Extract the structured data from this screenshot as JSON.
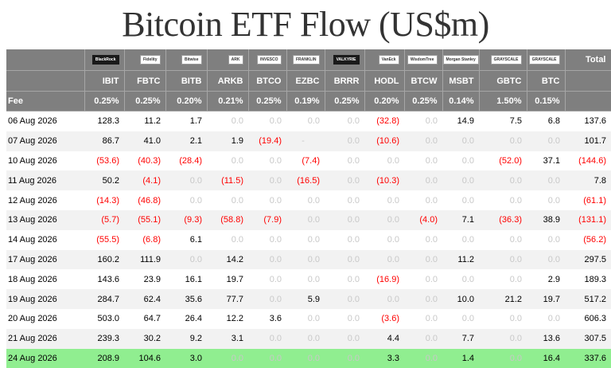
{
  "title": "Bitcoin ETF Flow (US$m)",
  "header": {
    "logos": [
      "BlackRock",
      "Fidelity",
      "Bitwise",
      "ARK",
      "INVESCO",
      "FRANKLIN",
      "VALKYRIE",
      "VanEck",
      "WisdomTree",
      "Morgan Stanley",
      "GRAYSCALE",
      "GRAYSCALE"
    ],
    "tickers": [
      "IBIT",
      "FBTC",
      "BITB",
      "ARKB",
      "BTCO",
      "EZBC",
      "BRRR",
      "HODL",
      "BTCW",
      "MSBT",
      "GBTC",
      "BTC"
    ],
    "total_label": "Total",
    "fee_label": "Fee",
    "fees": [
      "0.25%",
      "0.25%",
      "0.20%",
      "0.21%",
      "0.25%",
      "0.19%",
      "0.25%",
      "0.20%",
      "0.25%",
      "0.14%",
      "1.50%",
      "0.15%"
    ]
  },
  "rows": [
    {
      "date": "06 Aug 2026",
      "values": [
        "128.3",
        "11.2",
        "1.7",
        "0.0",
        "0.0",
        "0.0",
        "0.0",
        "(32.8)",
        "0.0",
        "14.9",
        "7.5",
        "6.8"
      ],
      "total": "137.6"
    },
    {
      "date": "07 Aug 2026",
      "values": [
        "86.7",
        "41.0",
        "2.1",
        "1.9",
        "(19.4)",
        "-",
        "0.0",
        "(10.6)",
        "0.0",
        "0.0",
        "0.0",
        "0.0"
      ],
      "total": "101.7"
    },
    {
      "date": "10 Aug 2026",
      "values": [
        "(53.6)",
        "(40.3)",
        "(28.4)",
        "0.0",
        "0.0",
        "(7.4)",
        "0.0",
        "0.0",
        "0.0",
        "0.0",
        "(52.0)",
        "37.1"
      ],
      "total": "(144.6)"
    },
    {
      "date": "11 Aug 2026",
      "values": [
        "50.2",
        "(4.1)",
        "0.0",
        "(11.5)",
        "0.0",
        "(16.5)",
        "0.0",
        "(10.3)",
        "0.0",
        "0.0",
        "0.0",
        "0.0"
      ],
      "total": "7.8"
    },
    {
      "date": "12 Aug 2026",
      "values": [
        "(14.3)",
        "(46.8)",
        "0.0",
        "0.0",
        "0.0",
        "0.0",
        "0.0",
        "0.0",
        "0.0",
        "0.0",
        "0.0",
        "0.0"
      ],
      "total": "(61.1)"
    },
    {
      "date": "13 Aug 2026",
      "values": [
        "(5.7)",
        "(55.1)",
        "(9.3)",
        "(58.8)",
        "(7.9)",
        "0.0",
        "0.0",
        "0.0",
        "(4.0)",
        "7.1",
        "(36.3)",
        "38.9"
      ],
      "total": "(131.1)"
    },
    {
      "date": "14 Aug 2026",
      "values": [
        "(55.5)",
        "(6.8)",
        "6.1",
        "0.0",
        "0.0",
        "0.0",
        "0.0",
        "0.0",
        "0.0",
        "0.0",
        "0.0",
        "0.0"
      ],
      "total": "(56.2)"
    },
    {
      "date": "17 Aug 2026",
      "values": [
        "160.2",
        "111.9",
        "0.0",
        "14.2",
        "0.0",
        "0.0",
        "0.0",
        "0.0",
        "0.0",
        "11.2",
        "0.0",
        "0.0"
      ],
      "total": "297.5"
    },
    {
      "date": "18 Aug 2026",
      "values": [
        "143.6",
        "23.9",
        "16.1",
        "19.7",
        "0.0",
        "0.0",
        "0.0",
        "(16.9)",
        "0.0",
        "0.0",
        "0.0",
        "2.9"
      ],
      "total": "189.3"
    },
    {
      "date": "19 Aug 2026",
      "values": [
        "284.7",
        "62.4",
        "35.6",
        "77.7",
        "0.0",
        "5.9",
        "0.0",
        "0.0",
        "0.0",
        "10.0",
        "21.2",
        "19.7"
      ],
      "total": "517.2"
    },
    {
      "date": "20 Aug 2026",
      "values": [
        "503.0",
        "64.7",
        "26.4",
        "12.2",
        "3.6",
        "0.0",
        "0.0",
        "(3.6)",
        "0.0",
        "0.0",
        "0.0",
        "0.0"
      ],
      "total": "606.3"
    },
    {
      "date": "21 Aug 2026",
      "values": [
        "239.3",
        "30.2",
        "9.2",
        "3.1",
        "0.0",
        "0.0",
        "0.0",
        "4.4",
        "0.0",
        "7.7",
        "0.0",
        "13.6"
      ],
      "total": "307.5"
    },
    {
      "date": "24 Aug 2026",
      "values": [
        "208.9",
        "104.6",
        "3.0",
        "0.0",
        "0.0",
        "0.0",
        "0.0",
        "3.3",
        "0.0",
        "1.4",
        "0.0",
        "16.4"
      ],
      "total": "337.6"
    }
  ]
}
